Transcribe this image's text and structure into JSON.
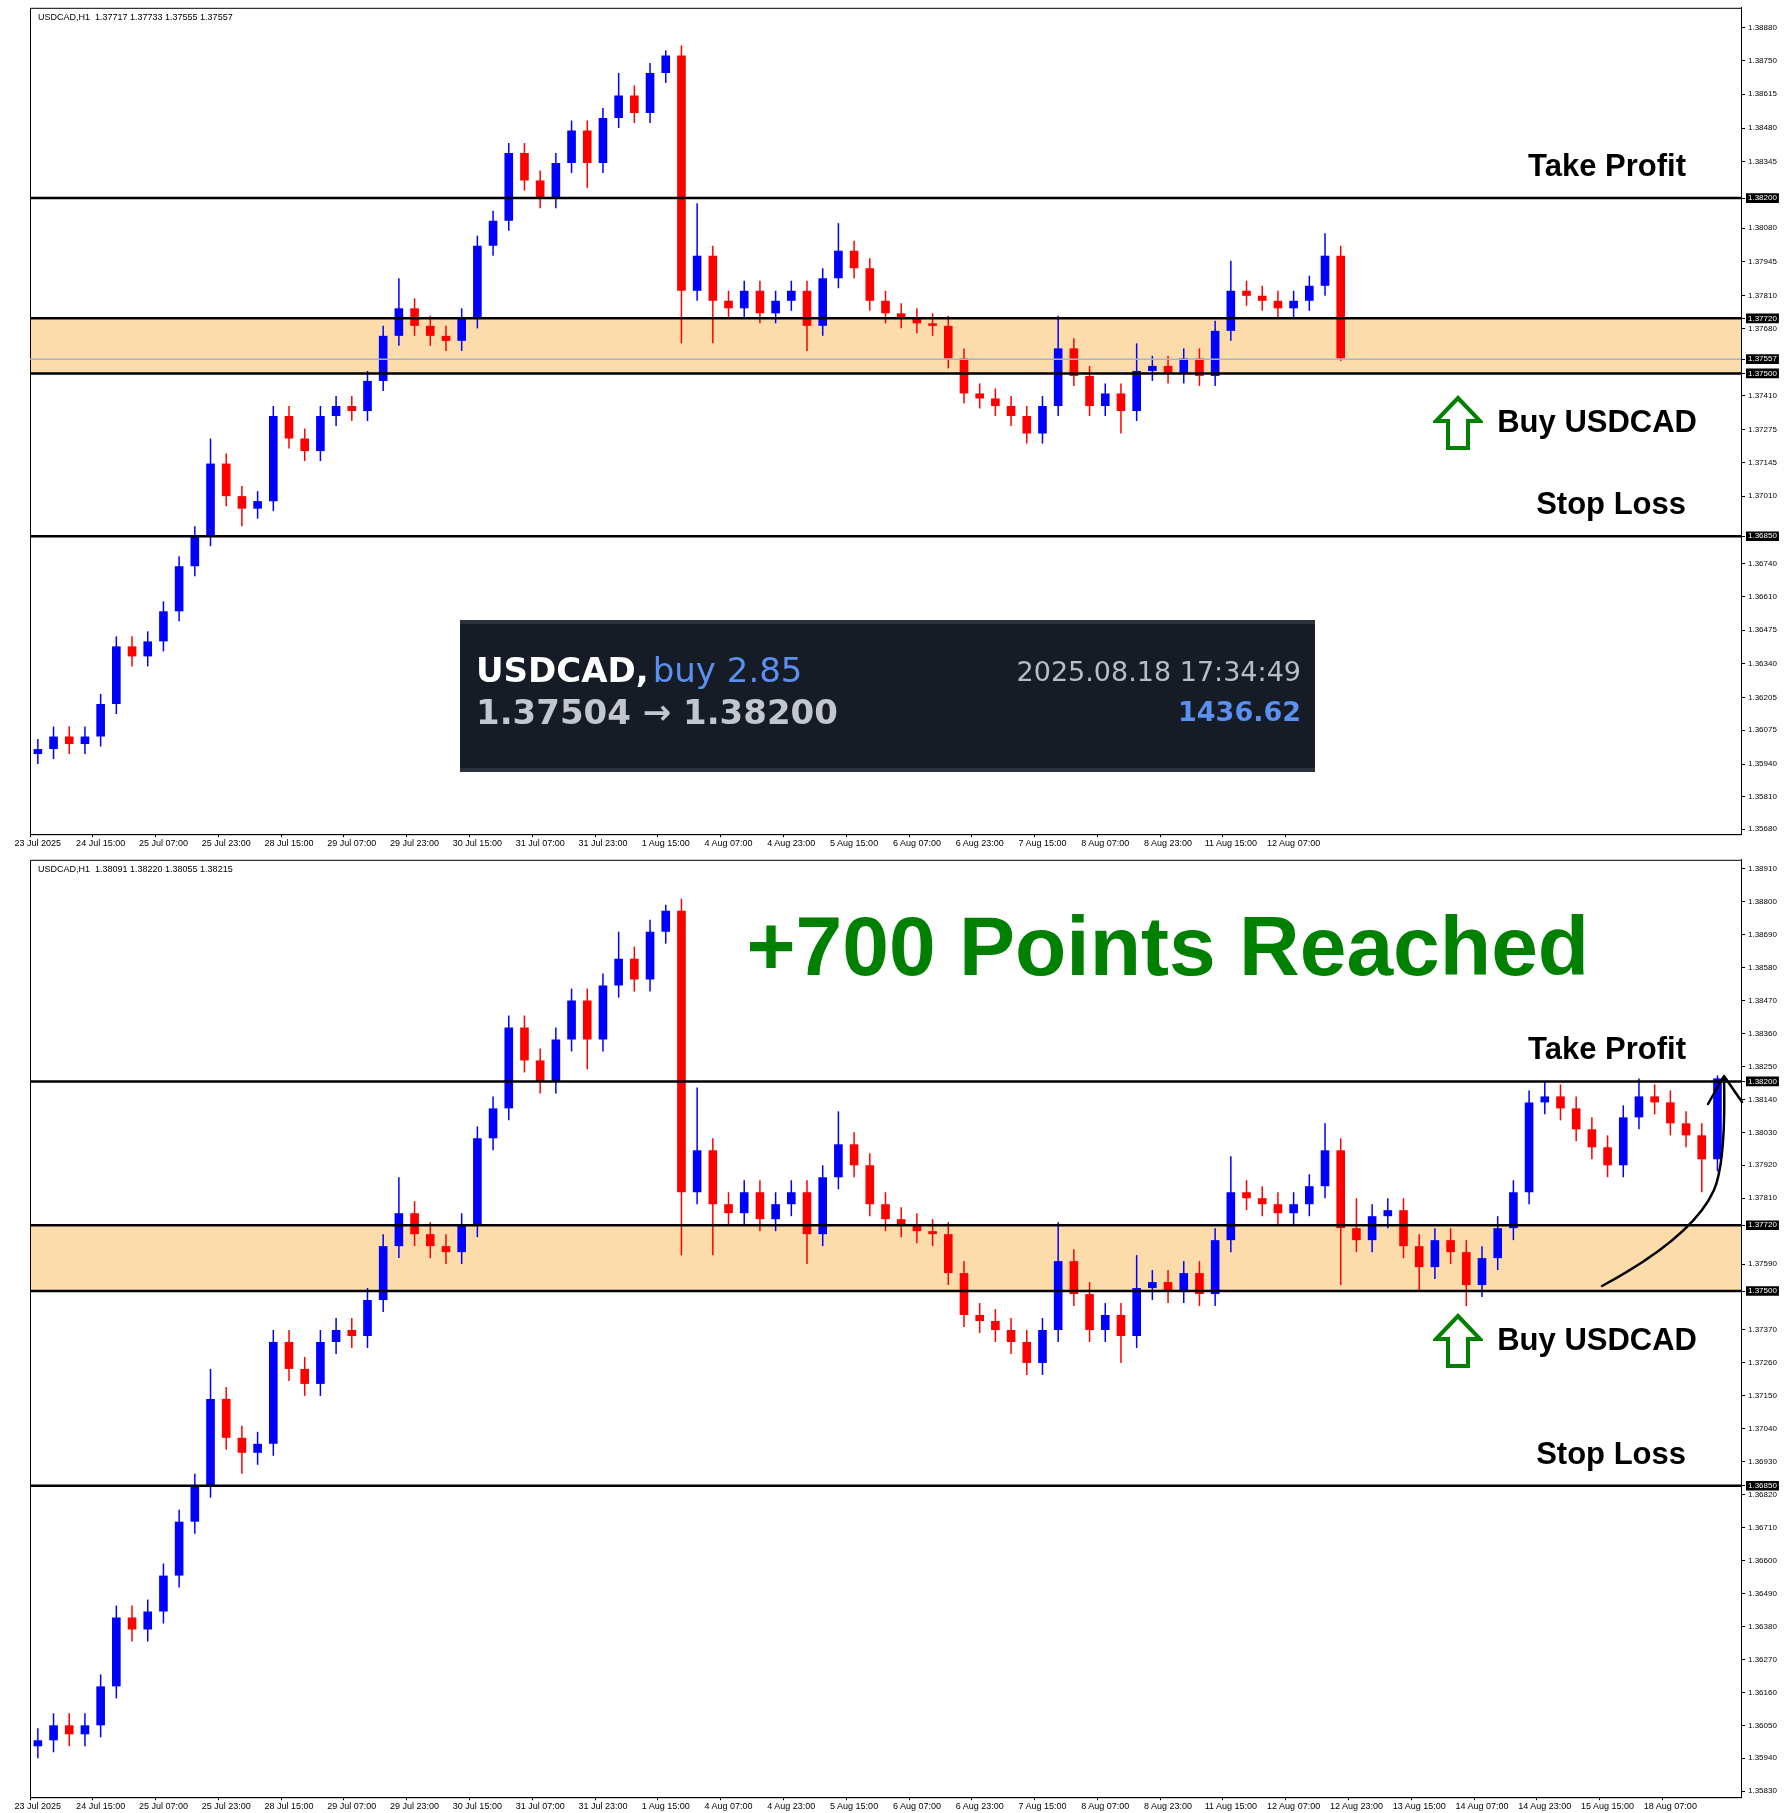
{
  "chart_data": [
    {
      "type": "candlestick",
      "title": "USDCAD,H1  1.37717 1.37733 1.37555 1.37557",
      "categories": [
        "23 Jul 2025",
        null,
        null,
        null,
        "24 Jul 15:00",
        null,
        null,
        null,
        "25 Jul 07:00",
        null,
        null,
        null,
        "25 Jul 23:00",
        null,
        null,
        null,
        "28 Jul 15:00",
        null,
        null,
        null,
        "29 Jul 07:00",
        null,
        null,
        null,
        "29 Jul 23:00",
        null,
        null,
        null,
        "30 Jul 15:00",
        null,
        null,
        null,
        "31 Jul 07:00",
        null,
        null,
        null,
        "31 Jul 23:00",
        null,
        null,
        null,
        "1 Aug 15:00",
        null,
        null,
        null,
        "4 Aug 07:00",
        null,
        null,
        null,
        "4 Aug 23:00",
        null,
        null,
        null,
        "5 Aug 15:00",
        null,
        null,
        null,
        "6 Aug 07:00",
        null,
        null,
        null,
        "6 Aug 23:00",
        null,
        null,
        null,
        "7 Aug 15:00",
        null,
        null,
        null,
        "8 Aug 07:00",
        null,
        null,
        null,
        "8 Aug 23:00",
        null,
        null,
        null,
        "11 Aug 15:00",
        null,
        null,
        null,
        "12 Aug 07:00",
        null,
        null,
        null,
        null,
        null,
        null,
        null,
        null,
        null,
        null,
        null,
        null,
        null,
        null,
        null,
        null,
        null,
        null,
        null,
        null,
        null,
        null,
        null,
        null,
        null,
        null,
        null,
        null
      ],
      "ohlc": [
        [
          1.3598,
          1.3604,
          1.3594,
          1.36
        ],
        [
          1.36,
          1.3609,
          1.3596,
          1.3605
        ],
        [
          1.3605,
          1.3609,
          1.3598,
          1.3602
        ],
        [
          1.3602,
          1.3609,
          1.3598,
          1.3605
        ],
        [
          1.3605,
          1.3622,
          1.3601,
          1.3618
        ],
        [
          1.3618,
          1.3645,
          1.3614,
          1.3641
        ],
        [
          1.3641,
          1.3645,
          1.3633,
          1.3637
        ],
        [
          1.3637,
          1.3647,
          1.3633,
          1.3643
        ],
        [
          1.3643,
          1.3659,
          1.3639,
          1.3655
        ],
        [
          1.3655,
          1.3677,
          1.3651,
          1.3673
        ],
        [
          1.3673,
          1.3689,
          1.3669,
          1.3685
        ],
        [
          1.3685,
          1.3724,
          1.3681,
          1.3714
        ],
        [
          1.3714,
          1.3718,
          1.3697,
          1.3701
        ],
        [
          1.3701,
          1.3705,
          1.3689,
          1.3696
        ],
        [
          1.3696,
          1.3703,
          1.3692,
          1.3699
        ],
        [
          1.3699,
          1.3737,
          1.3695,
          1.3733
        ],
        [
          1.3733,
          1.3737,
          1.372,
          1.3724
        ],
        [
          1.3724,
          1.3728,
          1.3715,
          1.3719
        ],
        [
          1.3719,
          1.3737,
          1.3715,
          1.3733
        ],
        [
          1.3733,
          1.3741,
          1.3729,
          1.3737
        ],
        [
          1.3737,
          1.3741,
          1.3731,
          1.3735
        ],
        [
          1.3735,
          1.3751,
          1.3731,
          1.3747
        ],
        [
          1.3747,
          1.3769,
          1.3743,
          1.3765
        ],
        [
          1.3765,
          1.3788,
          1.3761,
          1.3776
        ],
        [
          1.3776,
          1.378,
          1.3765,
          1.3769
        ],
        [
          1.3769,
          1.3773,
          1.3761,
          1.3765
        ],
        [
          1.3765,
          1.3769,
          1.3759,
          1.3763
        ],
        [
          1.3763,
          1.3776,
          1.3759,
          1.3772
        ],
        [
          1.3772,
          1.3805,
          1.3768,
          1.3801
        ],
        [
          1.3801,
          1.3815,
          1.3797,
          1.3811
        ],
        [
          1.3811,
          1.3842,
          1.3807,
          1.3838
        ],
        [
          1.3838,
          1.3842,
          1.3823,
          1.3827
        ],
        [
          1.3827,
          1.3831,
          1.3816,
          1.382
        ],
        [
          1.382,
          1.3838,
          1.3816,
          1.3834
        ],
        [
          1.3834,
          1.3851,
          1.383,
          1.3847
        ],
        [
          1.3847,
          1.3851,
          1.3824,
          1.3834
        ],
        [
          1.3834,
          1.3856,
          1.383,
          1.3852
        ],
        [
          1.3852,
          1.387,
          1.3848,
          1.3861
        ],
        [
          1.3861,
          1.3865,
          1.385,
          1.3854
        ],
        [
          1.3854,
          1.3874,
          1.385,
          1.387
        ],
        [
          1.387,
          1.3879,
          1.3866,
          1.3877
        ],
        [
          1.3877,
          1.3881,
          1.3762,
          1.3783
        ],
        [
          1.3783,
          1.3818,
          1.3779,
          1.3797
        ],
        [
          1.3797,
          1.3801,
          1.3762,
          1.3779
        ],
        [
          1.3779,
          1.3783,
          1.3772,
          1.3776
        ],
        [
          1.3776,
          1.3787,
          1.3772,
          1.3783
        ],
        [
          1.3783,
          1.3787,
          1.377,
          1.3774
        ],
        [
          1.3774,
          1.3783,
          1.377,
          1.3779
        ],
        [
          1.3779,
          1.3787,
          1.3775,
          1.3783
        ],
        [
          1.3783,
          1.3787,
          1.3759,
          1.3769
        ],
        [
          1.3769,
          1.3792,
          1.3765,
          1.3788
        ],
        [
          1.3788,
          1.381,
          1.3784,
          1.3799
        ],
        [
          1.3799,
          1.3803,
          1.3788,
          1.3792
        ],
        [
          1.3792,
          1.3796,
          1.3775,
          1.3779
        ],
        [
          1.3779,
          1.3783,
          1.377,
          1.3774
        ],
        [
          1.3774,
          1.3778,
          1.3768,
          1.3772
        ],
        [
          1.3772,
          1.3776,
          1.3766,
          1.377
        ],
        [
          1.377,
          1.3774,
          1.3765,
          1.3769
        ],
        [
          1.3769,
          1.3773,
          1.3752,
          1.3756
        ],
        [
          1.3756,
          1.376,
          1.3738,
          1.3742
        ],
        [
          1.3742,
          1.3746,
          1.3736,
          1.374
        ],
        [
          1.374,
          1.3744,
          1.3733,
          1.3737
        ],
        [
          1.3737,
          1.3741,
          1.3729,
          1.3733
        ],
        [
          1.3733,
          1.3737,
          1.3722,
          1.3726
        ],
        [
          1.3726,
          1.3741,
          1.3722,
          1.3737
        ],
        [
          1.3737,
          1.3773,
          1.3733,
          1.376
        ],
        [
          1.376,
          1.3764,
          1.3745,
          1.3749
        ],
        [
          1.3749,
          1.3753,
          1.3733,
          1.3737
        ],
        [
          1.3737,
          1.3746,
          1.3733,
          1.3742
        ],
        [
          1.3742,
          1.3746,
          1.3726,
          1.3735
        ],
        [
          1.3735,
          1.3762,
          1.3731,
          1.3751
        ],
        [
          1.3751,
          1.3757,
          1.3747,
          1.3753
        ],
        [
          1.3753,
          1.3757,
          1.3746,
          1.375
        ],
        [
          1.375,
          1.376,
          1.3746,
          1.3756
        ],
        [
          1.3756,
          1.376,
          1.3745,
          1.3749
        ],
        [
          1.3749,
          1.3771,
          1.3745,
          1.3767
        ],
        [
          1.3767,
          1.3795,
          1.3763,
          1.3783
        ],
        [
          1.3783,
          1.3787,
          1.3777,
          1.3781
        ],
        [
          1.3781,
          1.3785,
          1.3775,
          1.3779
        ],
        [
          1.3779,
          1.3783,
          1.3772,
          1.3776
        ],
        [
          1.3776,
          1.3783,
          1.3772,
          1.3779
        ],
        [
          1.3779,
          1.3789,
          1.3775,
          1.3785
        ],
        [
          1.3785,
          1.3806,
          1.3781,
          1.3797
        ],
        [
          1.3797,
          1.3801,
          1.3755,
          1.3756
        ],
        null,
        null,
        null,
        null,
        null,
        null,
        null,
        null,
        null,
        null,
        null,
        null,
        null,
        null,
        null,
        null,
        null,
        null,
        null,
        null,
        null,
        null,
        null,
        null,
        null
      ],
      "colors": [
        "#0000ff",
        "#0000ff",
        "#ff0000",
        "#0000ff",
        "#0000ff",
        "#0000ff",
        "#ff0000",
        "#0000ff",
        "#0000ff",
        "#0000ff",
        "#0000ff",
        "#0000ff",
        "#ff0000",
        "#ff0000",
        "#0000ff",
        "#0000ff",
        "#ff0000",
        "#ff0000",
        "#0000ff",
        "#0000ff",
        "#ff0000",
        "#0000ff",
        "#0000ff",
        "#0000ff",
        "#ff0000",
        "#ff0000",
        "#ff0000",
        "#0000ff",
        "#0000ff",
        "#0000ff",
        "#0000ff",
        "#ff0000",
        "#ff0000",
        "#0000ff",
        "#0000ff",
        "#ff0000",
        "#0000ff",
        "#0000ff",
        "#ff0000",
        "#0000ff",
        "#0000ff",
        "#ff0000",
        "#0000ff",
        "#ff0000",
        "#ff0000",
        "#0000ff",
        "#ff0000",
        "#0000ff",
        "#0000ff",
        "#ff0000",
        "#0000ff",
        "#0000ff",
        "#ff0000",
        "#ff0000",
        "#ff0000",
        "#ff0000",
        "#ff0000",
        "#ff0000",
        "#ff0000",
        "#ff0000",
        "#ff0000",
        "#ff0000",
        "#ff0000",
        "#ff0000",
        "#0000ff",
        "#0000ff",
        "#ff0000",
        "#ff0000",
        "#0000ff",
        "#ff0000",
        "#0000ff",
        "#0000ff",
        "#ff0000",
        "#0000ff",
        "#ff0000",
        "#0000ff",
        "#0000ff",
        "#ff0000",
        "#ff0000",
        "#ff0000",
        "#0000ff",
        "#0000ff",
        "#0000ff",
        "#ff0000",
        null,
        null,
        null,
        null,
        null,
        null,
        null,
        null,
        null,
        null,
        null,
        null,
        null,
        null,
        null,
        null,
        null,
        null,
        null,
        null,
        null,
        null,
        null,
        null,
        null
      ],
      "ylim": [
        1.3566,
        1.3896
      ],
      "yticks": [
        {
          "value": 1.3568,
          "label": "1.35680"
        },
        {
          "value": 1.3581,
          "label": "1.35810"
        },
        {
          "value": 1.3594,
          "label": "1.35940"
        },
        {
          "value": 1.36075,
          "label": "1.36075"
        },
        {
          "value": 1.36205,
          "label": "1.36205"
        },
        {
          "value": 1.3634,
          "label": "1.36340"
        },
        {
          "value": 1.36475,
          "label": "1.36475"
        },
        {
          "value": 1.3661,
          "label": "1.36610"
        },
        {
          "value": 1.3674,
          "label": "1.36740"
        },
        {
          "value": 1.3685,
          "label": "1.36850"
        },
        {
          "value": 1.3701,
          "label": "1.37010"
        },
        {
          "value": 1.37145,
          "label": "1.37145"
        },
        {
          "value": 1.37275,
          "label": "1.37275"
        },
        {
          "value": 1.3741,
          "label": "1.37410"
        },
        {
          "value": 1.375,
          "label": "1.37500"
        },
        {
          "value": 1.37557,
          "label": "1.37557"
        },
        {
          "value": 1.3768,
          "label": "1.37680"
        },
        {
          "value": 1.3772,
          "label": "1.37720"
        },
        {
          "value": 1.3781,
          "label": "1.37810"
        },
        {
          "value": 1.37945,
          "label": "1.37945"
        },
        {
          "value": 1.3808,
          "label": "1.38080"
        },
        {
          "value": 1.382,
          "label": "1.38200"
        },
        {
          "value": 1.38345,
          "label": "1.38345"
        },
        {
          "value": 1.3848,
          "label": "1.38480"
        },
        {
          "value": 1.38615,
          "label": "1.38615"
        },
        {
          "value": 1.3875,
          "label": "1.38750"
        },
        {
          "value": 1.3888,
          "label": "1.38880"
        }
      ],
      "bands": [
        {
          "axis": "y",
          "from": 1.375,
          "to": 1.3772,
          "color": "#fcdcab"
        }
      ],
      "ref_lines": [
        {
          "axis": "y",
          "value": 1.382,
          "label": "Take Profit"
        },
        {
          "axis": "y",
          "value": 1.3772,
          "label": null
        },
        {
          "axis": "y",
          "value": 1.37557,
          "label": null,
          "color": "#a9b4c0"
        },
        {
          "axis": "y",
          "value": 1.375,
          "label": "Buy USDCAD"
        },
        {
          "axis": "y",
          "value": 1.3685,
          "label": "Stop Loss"
        }
      ]
    },
    {
      "type": "other",
      "annotations": [
        "USDCAD,",
        "buy 2.85",
        "1.37504 → 1.38200",
        "2025.08.18 17:34:49",
        "1436.62"
      ]
    },
    {
      "type": "candlestick",
      "title": "USDCAD,H1  1.38091 1.38220 1.38055 1.38215",
      "categories": [
        "23 Jul 2025",
        null,
        null,
        null,
        "24 Jul 15:00",
        null,
        null,
        null,
        "25 Jul 07:00",
        null,
        null,
        null,
        "25 Jul 23:00",
        null,
        null,
        null,
        "28 Jul 15:00",
        null,
        null,
        null,
        "29 Jul 07:00",
        null,
        null,
        null,
        "29 Jul 23:00",
        null,
        null,
        null,
        "30 Jul 15:00",
        null,
        null,
        null,
        "31 Jul 07:00",
        null,
        null,
        null,
        "31 Jul 23:00",
        null,
        null,
        null,
        "1 Aug 15:00",
        null,
        null,
        null,
        "4 Aug 07:00",
        null,
        null,
        null,
        "4 Aug 23:00",
        null,
        null,
        null,
        "5 Aug 15:00",
        null,
        null,
        null,
        "6 Aug 07:00",
        null,
        null,
        null,
        "6 Aug 23:00",
        null,
        null,
        null,
        "7 Aug 15:00",
        null,
        null,
        null,
        "8 Aug 07:00",
        null,
        null,
        null,
        "8 Aug 23:00",
        null,
        null,
        null,
        "11 Aug 15:00",
        null,
        null,
        null,
        "12 Aug 07:00",
        null,
        null,
        null,
        "12 Aug 23:00",
        null,
        null,
        null,
        "13 Aug 15:00",
        null,
        null,
        null,
        "14 Aug 07:00",
        null,
        null,
        null,
        "14 Aug 23:00",
        null,
        null,
        null,
        "15 Aug 15:00",
        null,
        null,
        null,
        "18 Aug 07:00",
        null,
        null,
        null,
        null
      ],
      "ohlc": [
        [
          1.3598,
          1.3604,
          1.3594,
          1.36
        ],
        [
          1.36,
          1.3609,
          1.3596,
          1.3605
        ],
        [
          1.3605,
          1.3609,
          1.3598,
          1.3602
        ],
        [
          1.3602,
          1.3609,
          1.3598,
          1.3605
        ],
        [
          1.3605,
          1.3622,
          1.3601,
          1.3618
        ],
        [
          1.3618,
          1.3645,
          1.3614,
          1.3641
        ],
        [
          1.3641,
          1.3645,
          1.3633,
          1.3637
        ],
        [
          1.3637,
          1.3647,
          1.3633,
          1.3643
        ],
        [
          1.3643,
          1.3659,
          1.3639,
          1.3655
        ],
        [
          1.3655,
          1.3677,
          1.3651,
          1.3673
        ],
        [
          1.3673,
          1.3689,
          1.3669,
          1.3685
        ],
        [
          1.3685,
          1.3724,
          1.3681,
          1.3714
        ],
        [
          1.3714,
          1.3718,
          1.3697,
          1.3701
        ],
        [
          1.3701,
          1.3705,
          1.3689,
          1.3696
        ],
        [
          1.3696,
          1.3703,
          1.3692,
          1.3699
        ],
        [
          1.3699,
          1.3737,
          1.3695,
          1.3733
        ],
        [
          1.3733,
          1.3737,
          1.372,
          1.3724
        ],
        [
          1.3724,
          1.3728,
          1.3715,
          1.3719
        ],
        [
          1.3719,
          1.3737,
          1.3715,
          1.3733
        ],
        [
          1.3733,
          1.3741,
          1.3729,
          1.3737
        ],
        [
          1.3737,
          1.3741,
          1.3731,
          1.3735
        ],
        [
          1.3735,
          1.3751,
          1.3731,
          1.3747
        ],
        [
          1.3747,
          1.3769,
          1.3743,
          1.3765
        ],
        [
          1.3765,
          1.3788,
          1.3761,
          1.3776
        ],
        [
          1.3776,
          1.378,
          1.3765,
          1.3769
        ],
        [
          1.3769,
          1.3773,
          1.3761,
          1.3765
        ],
        [
          1.3765,
          1.3769,
          1.3759,
          1.3763
        ],
        [
          1.3763,
          1.3776,
          1.3759,
          1.3772
        ],
        [
          1.3772,
          1.3805,
          1.3768,
          1.3801
        ],
        [
          1.3801,
          1.3815,
          1.3797,
          1.3811
        ],
        [
          1.3811,
          1.3842,
          1.3807,
          1.3838
        ],
        [
          1.3838,
          1.3842,
          1.3823,
          1.3827
        ],
        [
          1.3827,
          1.3831,
          1.3816,
          1.382
        ],
        [
          1.382,
          1.3838,
          1.3816,
          1.3834
        ],
        [
          1.3834,
          1.3851,
          1.383,
          1.3847
        ],
        [
          1.3847,
          1.3851,
          1.3824,
          1.3834
        ],
        [
          1.3834,
          1.3856,
          1.383,
          1.3852
        ],
        [
          1.3852,
          1.387,
          1.3848,
          1.3861
        ],
        [
          1.3861,
          1.3865,
          1.385,
          1.3854
        ],
        [
          1.3854,
          1.3874,
          1.385,
          1.387
        ],
        [
          1.387,
          1.3879,
          1.3866,
          1.3877
        ],
        [
          1.3877,
          1.3881,
          1.3762,
          1.3783
        ],
        [
          1.3783,
          1.3818,
          1.3779,
          1.3797
        ],
        [
          1.3797,
          1.3801,
          1.3762,
          1.3779
        ],
        [
          1.3779,
          1.3783,
          1.3772,
          1.3776
        ],
        [
          1.3776,
          1.3787,
          1.3772,
          1.3783
        ],
        [
          1.3783,
          1.3787,
          1.377,
          1.3774
        ],
        [
          1.3774,
          1.3783,
          1.377,
          1.3779
        ],
        [
          1.3779,
          1.3787,
          1.3775,
          1.3783
        ],
        [
          1.3783,
          1.3787,
          1.3759,
          1.3769
        ],
        [
          1.3769,
          1.3792,
          1.3765,
          1.3788
        ],
        [
          1.3788,
          1.381,
          1.3784,
          1.3799
        ],
        [
          1.3799,
          1.3803,
          1.3788,
          1.3792
        ],
        [
          1.3792,
          1.3796,
          1.3775,
          1.3779
        ],
        [
          1.3779,
          1.3783,
          1.377,
          1.3774
        ],
        [
          1.3774,
          1.3778,
          1.3768,
          1.3772
        ],
        [
          1.3772,
          1.3776,
          1.3766,
          1.377
        ],
        [
          1.377,
          1.3774,
          1.3765,
          1.3769
        ],
        [
          1.3769,
          1.3773,
          1.3752,
          1.3756
        ],
        [
          1.3756,
          1.376,
          1.3738,
          1.3742
        ],
        [
          1.3742,
          1.3746,
          1.3736,
          1.374
        ],
        [
          1.374,
          1.3744,
          1.3733,
          1.3737
        ],
        [
          1.3737,
          1.3741,
          1.3729,
          1.3733
        ],
        [
          1.3733,
          1.3737,
          1.3722,
          1.3726
        ],
        [
          1.3726,
          1.3741,
          1.3722,
          1.3737
        ],
        [
          1.3737,
          1.3773,
          1.3733,
          1.376
        ],
        [
          1.376,
          1.3764,
          1.3745,
          1.3749
        ],
        [
          1.3749,
          1.3753,
          1.3733,
          1.3737
        ],
        [
          1.3737,
          1.3746,
          1.3733,
          1.3742
        ],
        [
          1.3742,
          1.3746,
          1.3726,
          1.3735
        ],
        [
          1.3735,
          1.3762,
          1.3731,
          1.3751
        ],
        [
          1.3751,
          1.3757,
          1.3747,
          1.3753
        ],
        [
          1.3753,
          1.3757,
          1.3746,
          1.375
        ],
        [
          1.375,
          1.376,
          1.3746,
          1.3756
        ],
        [
          1.3756,
          1.376,
          1.3745,
          1.3749
        ],
        [
          1.3749,
          1.3771,
          1.3745,
          1.3767
        ],
        [
          1.3767,
          1.3795,
          1.3763,
          1.3783
        ],
        [
          1.3783,
          1.3787,
          1.3777,
          1.3781
        ],
        [
          1.3781,
          1.3785,
          1.3775,
          1.3779
        ],
        [
          1.3779,
          1.3783,
          1.3772,
          1.3776
        ],
        [
          1.3776,
          1.3783,
          1.3772,
          1.3779
        ],
        [
          1.3779,
          1.3789,
          1.3775,
          1.3785
        ],
        [
          1.3785,
          1.3806,
          1.3781,
          1.3797
        ],
        [
          1.3797,
          1.3801,
          1.3752,
          1.3771
        ],
        [
          1.3771,
          1.3781,
          1.3763,
          1.3767
        ],
        [
          1.3767,
          1.3779,
          1.3763,
          1.3775
        ],
        [
          1.3775,
          1.3781,
          1.3771,
          1.3777
        ],
        [
          1.3777,
          1.3781,
          1.3761,
          1.3765
        ],
        [
          1.3765,
          1.3769,
          1.375,
          1.3758
        ],
        [
          1.3758,
          1.3771,
          1.3754,
          1.3767
        ],
        [
          1.3767,
          1.3771,
          1.3759,
          1.3763
        ],
        [
          1.3763,
          1.3767,
          1.3745,
          1.3752
        ],
        [
          1.3752,
          1.3765,
          1.3748,
          1.3761
        ],
        [
          1.3761,
          1.3775,
          1.3757,
          1.3771
        ],
        [
          1.3771,
          1.3787,
          1.3767,
          1.3783
        ],
        [
          1.3783,
          1.3817,
          1.3779,
          1.3813
        ],
        [
          1.3813,
          1.382,
          1.3809,
          1.3815
        ],
        [
          1.3815,
          1.3819,
          1.3807,
          1.3811
        ],
        [
          1.3811,
          1.3815,
          1.38,
          1.3804
        ],
        [
          1.3804,
          1.3808,
          1.3794,
          1.3798
        ],
        [
          1.3798,
          1.3802,
          1.3788,
          1.3792
        ],
        [
          1.3792,
          1.3812,
          1.3788,
          1.3808
        ],
        [
          1.3808,
          1.3821,
          1.3804,
          1.3815
        ],
        [
          1.3815,
          1.3819,
          1.3809,
          1.3813
        ],
        [
          1.3813,
          1.3817,
          1.3802,
          1.3806
        ],
        [
          1.3806,
          1.381,
          1.3798,
          1.3802
        ],
        [
          1.3802,
          1.3806,
          1.3783,
          1.3794
        ],
        [
          1.3794,
          1.3822,
          1.379,
          1.3821
        ],
        null
      ],
      "colors": [
        "#0000ff",
        "#0000ff",
        "#ff0000",
        "#0000ff",
        "#0000ff",
        "#0000ff",
        "#ff0000",
        "#0000ff",
        "#0000ff",
        "#0000ff",
        "#0000ff",
        "#0000ff",
        "#ff0000",
        "#ff0000",
        "#0000ff",
        "#0000ff",
        "#ff0000",
        "#ff0000",
        "#0000ff",
        "#0000ff",
        "#ff0000",
        "#0000ff",
        "#0000ff",
        "#0000ff",
        "#ff0000",
        "#ff0000",
        "#ff0000",
        "#0000ff",
        "#0000ff",
        "#0000ff",
        "#0000ff",
        "#ff0000",
        "#ff0000",
        "#0000ff",
        "#0000ff",
        "#ff0000",
        "#0000ff",
        "#0000ff",
        "#ff0000",
        "#0000ff",
        "#0000ff",
        "#ff0000",
        "#0000ff",
        "#ff0000",
        "#ff0000",
        "#0000ff",
        "#ff0000",
        "#0000ff",
        "#0000ff",
        "#ff0000",
        "#0000ff",
        "#0000ff",
        "#ff0000",
        "#ff0000",
        "#ff0000",
        "#ff0000",
        "#ff0000",
        "#ff0000",
        "#ff0000",
        "#ff0000",
        "#ff0000",
        "#ff0000",
        "#ff0000",
        "#ff0000",
        "#0000ff",
        "#0000ff",
        "#ff0000",
        "#ff0000",
        "#0000ff",
        "#ff0000",
        "#0000ff",
        "#0000ff",
        "#ff0000",
        "#0000ff",
        "#ff0000",
        "#0000ff",
        "#0000ff",
        "#ff0000",
        "#ff0000",
        "#ff0000",
        "#0000ff",
        "#0000ff",
        "#0000ff",
        "#ff0000",
        "#ff0000",
        "#0000ff",
        "#0000ff",
        "#ff0000",
        "#ff0000",
        "#0000ff",
        "#ff0000",
        "#ff0000",
        "#0000ff",
        "#0000ff",
        "#0000ff",
        "#0000ff",
        "#0000ff",
        "#ff0000",
        "#ff0000",
        "#ff0000",
        "#ff0000",
        "#0000ff",
        "#0000ff",
        "#ff0000",
        "#ff0000",
        "#ff0000",
        "#ff0000",
        "#0000ff",
        null
      ],
      "ylim": [
        1.3581,
        1.3894
      ],
      "yticks": [
        {
          "value": 1.3583,
          "label": "1.35830"
        },
        {
          "value": 1.3594,
          "label": "1.35940"
        },
        {
          "value": 1.3605,
          "label": "1.36050"
        },
        {
          "value": 1.3616,
          "label": "1.36160"
        },
        {
          "value": 1.3627,
          "label": "1.36270"
        },
        {
          "value": 1.3638,
          "label": "1.36380"
        },
        {
          "value": 1.3649,
          "label": "1.36490"
        },
        {
          "value": 1.366,
          "label": "1.36600"
        },
        {
          "value": 1.3671,
          "label": "1.36710"
        },
        {
          "value": 1.3682,
          "label": "1.36820"
        },
        {
          "value": 1.3685,
          "label": "1.36850"
        },
        {
          "value": 1.3693,
          "label": "1.36930"
        },
        {
          "value": 1.3704,
          "label": "1.37040"
        },
        {
          "value": 1.3715,
          "label": "1.37150"
        },
        {
          "value": 1.3726,
          "label": "1.37260"
        },
        {
          "value": 1.3737,
          "label": "1.37370"
        },
        {
          "value": 1.375,
          "label": "1.37500"
        },
        {
          "value": 1.3759,
          "label": "1.37590"
        },
        {
          "value": 1.3772,
          "label": "1.37720"
        },
        {
          "value": 1.3781,
          "label": "1.37810"
        },
        {
          "value": 1.3792,
          "label": "1.37920"
        },
        {
          "value": 1.3803,
          "label": "1.38030"
        },
        {
          "value": 1.3814,
          "label": "1.38140"
        },
        {
          "value": 1.382,
          "label": "1.38200"
        },
        {
          "value": 1.3825,
          "label": "1.38250"
        },
        {
          "value": 1.3836,
          "label": "1.38360"
        },
        {
          "value": 1.3847,
          "label": "1.38470"
        },
        {
          "value": 1.3858,
          "label": "1.38580"
        },
        {
          "value": 1.3869,
          "label": "1.38690"
        },
        {
          "value": 1.388,
          "label": "1.38800"
        },
        {
          "value": 1.3891,
          "label": "1.38910"
        }
      ],
      "bands": [
        {
          "axis": "y",
          "from": 1.375,
          "to": 1.3772,
          "color": "#fcdcab"
        }
      ],
      "ref_lines": [
        {
          "axis": "y",
          "value": 1.382,
          "label": "Take Profit"
        },
        {
          "axis": "y",
          "value": 1.3772,
          "label": null
        },
        {
          "axis": "y",
          "value": 1.375,
          "label": "Buy USDCAD"
        },
        {
          "axis": "y",
          "value": 1.3685,
          "label": "Stop Loss"
        }
      ],
      "annotations": [
        "+700 Points Reached"
      ]
    }
  ]
}
